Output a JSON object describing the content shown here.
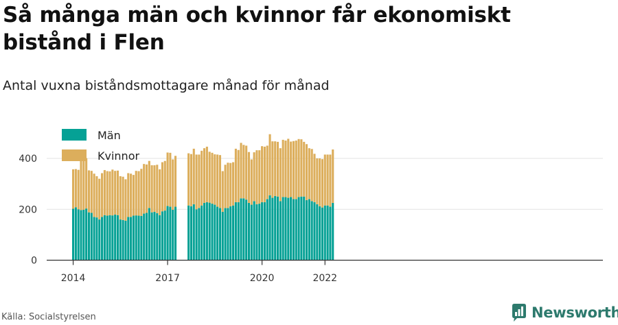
{
  "title": "Så många män och kvinnor får ekonomiskt bistånd i Flen",
  "subtitle": "Antal vuxna biståndsmottagare månad för månad",
  "source": "Källa: Socialstyrelsen",
  "brand": "Newsworthy",
  "colors": {
    "men": "#05a195",
    "women": "#dcae5c",
    "grid": "#e3e3e3",
    "axis": "#333333",
    "brand": "#2d7a6d"
  },
  "chart_data": {
    "type": "bar",
    "stacked": true,
    "x_ticks": [
      "2014",
      "2017",
      "2020",
      "2022"
    ],
    "y_ticks": [
      0,
      200,
      400
    ],
    "ylim": [
      0,
      500
    ],
    "legend_position": "top-left",
    "grid": "horizontal",
    "start_month": "2014-01",
    "series": [
      {
        "name": "Män",
        "color": "#05a195",
        "values": [
          202,
          208,
          200,
          197,
          198,
          203,
          188,
          186,
          170,
          168,
          160,
          170,
          177,
          175,
          177,
          176,
          179,
          177,
          160,
          158,
          155,
          170,
          170,
          175,
          176,
          175,
          174,
          183,
          186,
          205,
          188,
          190,
          185,
          177,
          192,
          195,
          213,
          210,
          198,
          210,
          null,
          null,
          null,
          null,
          215,
          212,
          220,
          200,
          205,
          215,
          225,
          228,
          226,
          222,
          218,
          210,
          205,
          190,
          205,
          205,
          212,
          215,
          228,
          228,
          243,
          243,
          238,
          225,
          218,
          232,
          220,
          222,
          228,
          228,
          240,
          255,
          245,
          252,
          250,
          232,
          248,
          248,
          245,
          248,
          240,
          240,
          248,
          250,
          250,
          236,
          240,
          232,
          228,
          220,
          212,
          207,
          215,
          215,
          210,
          225
        ]
      },
      {
        "name": "Kvinnor",
        "color": "#dcae5c",
        "values": [
          155,
          150,
          155,
          200,
          200,
          198,
          165,
          165,
          170,
          162,
          160,
          172,
          177,
          175,
          172,
          180,
          172,
          175,
          170,
          170,
          163,
          172,
          170,
          160,
          175,
          175,
          185,
          195,
          190,
          185,
          185,
          183,
          190,
          180,
          193,
          195,
          210,
          212,
          198,
          200,
          null,
          null,
          null,
          null,
          205,
          205,
          218,
          215,
          210,
          215,
          215,
          218,
          200,
          200,
          198,
          205,
          208,
          160,
          170,
          178,
          170,
          170,
          210,
          205,
          218,
          210,
          212,
          200,
          178,
          192,
          212,
          210,
          220,
          218,
          210,
          240,
          222,
          215,
          215,
          208,
          225,
          222,
          232,
          218,
          228,
          230,
          228,
          225,
          215,
          220,
          200,
          205,
          190,
          180,
          188,
          190,
          200,
          200,
          205,
          210
        ]
      }
    ]
  }
}
